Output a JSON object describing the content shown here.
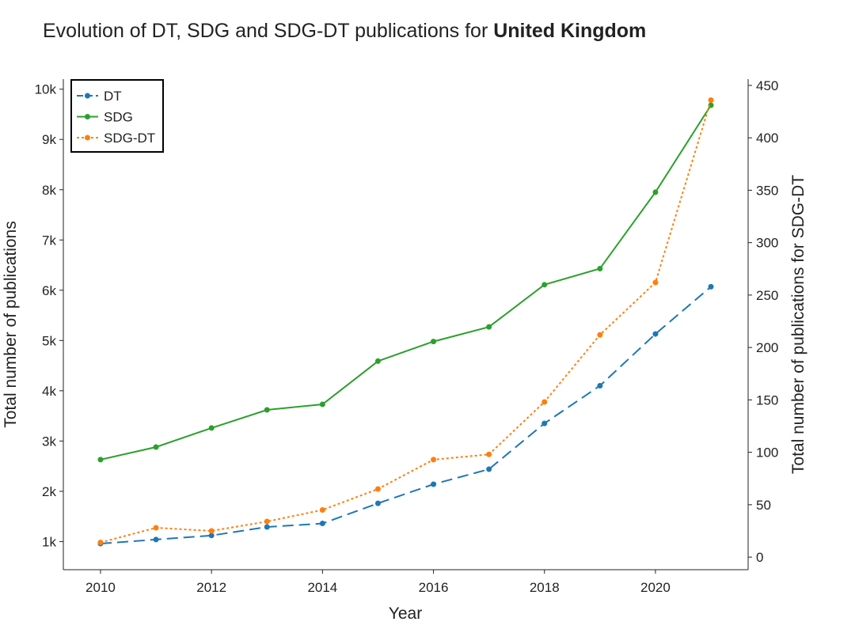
{
  "title": {
    "prefix": "Evolution of DT, SDG and SDG-DT publications for ",
    "country": "United Kingdom"
  },
  "chart_data": {
    "type": "line",
    "xlabel": "Year",
    "ylabel_left": "Total number of publications",
    "ylabel_right": "Total number of publications for SDG-DT",
    "x": [
      2010,
      2011,
      2012,
      2013,
      2014,
      2015,
      2016,
      2017,
      2018,
      2019,
      2020,
      2021
    ],
    "xlim": [
      2009.33,
      2021.67
    ],
    "x_ticks": [
      2010,
      2012,
      2014,
      2016,
      2018,
      2020
    ],
    "ylim_left": [
      440,
      10200
    ],
    "y_ticks_left": [
      1000,
      2000,
      3000,
      4000,
      5000,
      6000,
      7000,
      8000,
      9000,
      10000
    ],
    "y_tick_labels_left": [
      "1k",
      "2k",
      "3k",
      "4k",
      "5k",
      "6k",
      "7k",
      "8k",
      "9k",
      "10k"
    ],
    "ylim_right": [
      -12,
      456
    ],
    "y_ticks_right": [
      0,
      50,
      100,
      150,
      200,
      250,
      300,
      350,
      400,
      450
    ],
    "y_tick_labels_right": [
      "0",
      "50",
      "100",
      "150",
      "200",
      "250",
      "300",
      "350",
      "400",
      "450"
    ],
    "series": [
      {
        "name": "DT",
        "axis": "left",
        "color": "#1f77b4",
        "dash": "dashed",
        "values": [
          960,
          1040,
          1120,
          1290,
          1360,
          1760,
          2140,
          2440,
          3350,
          4100,
          5130,
          6070
        ]
      },
      {
        "name": "SDG",
        "axis": "left",
        "color": "#2ca02c",
        "dash": "solid",
        "values": [
          2630,
          2880,
          3260,
          3620,
          3730,
          4590,
          4980,
          5270,
          6110,
          6430,
          7950,
          9680
        ]
      },
      {
        "name": "SDG-DT",
        "axis": "right",
        "color": "#ff7f0e",
        "dash": "dotted",
        "values": [
          14,
          28,
          25,
          34,
          45,
          65,
          93,
          98,
          148,
          212,
          262,
          436
        ]
      }
    ],
    "legend": {
      "position": "top-left",
      "entries": [
        "DT",
        "SDG",
        "SDG-DT"
      ]
    },
    "grid": false
  }
}
